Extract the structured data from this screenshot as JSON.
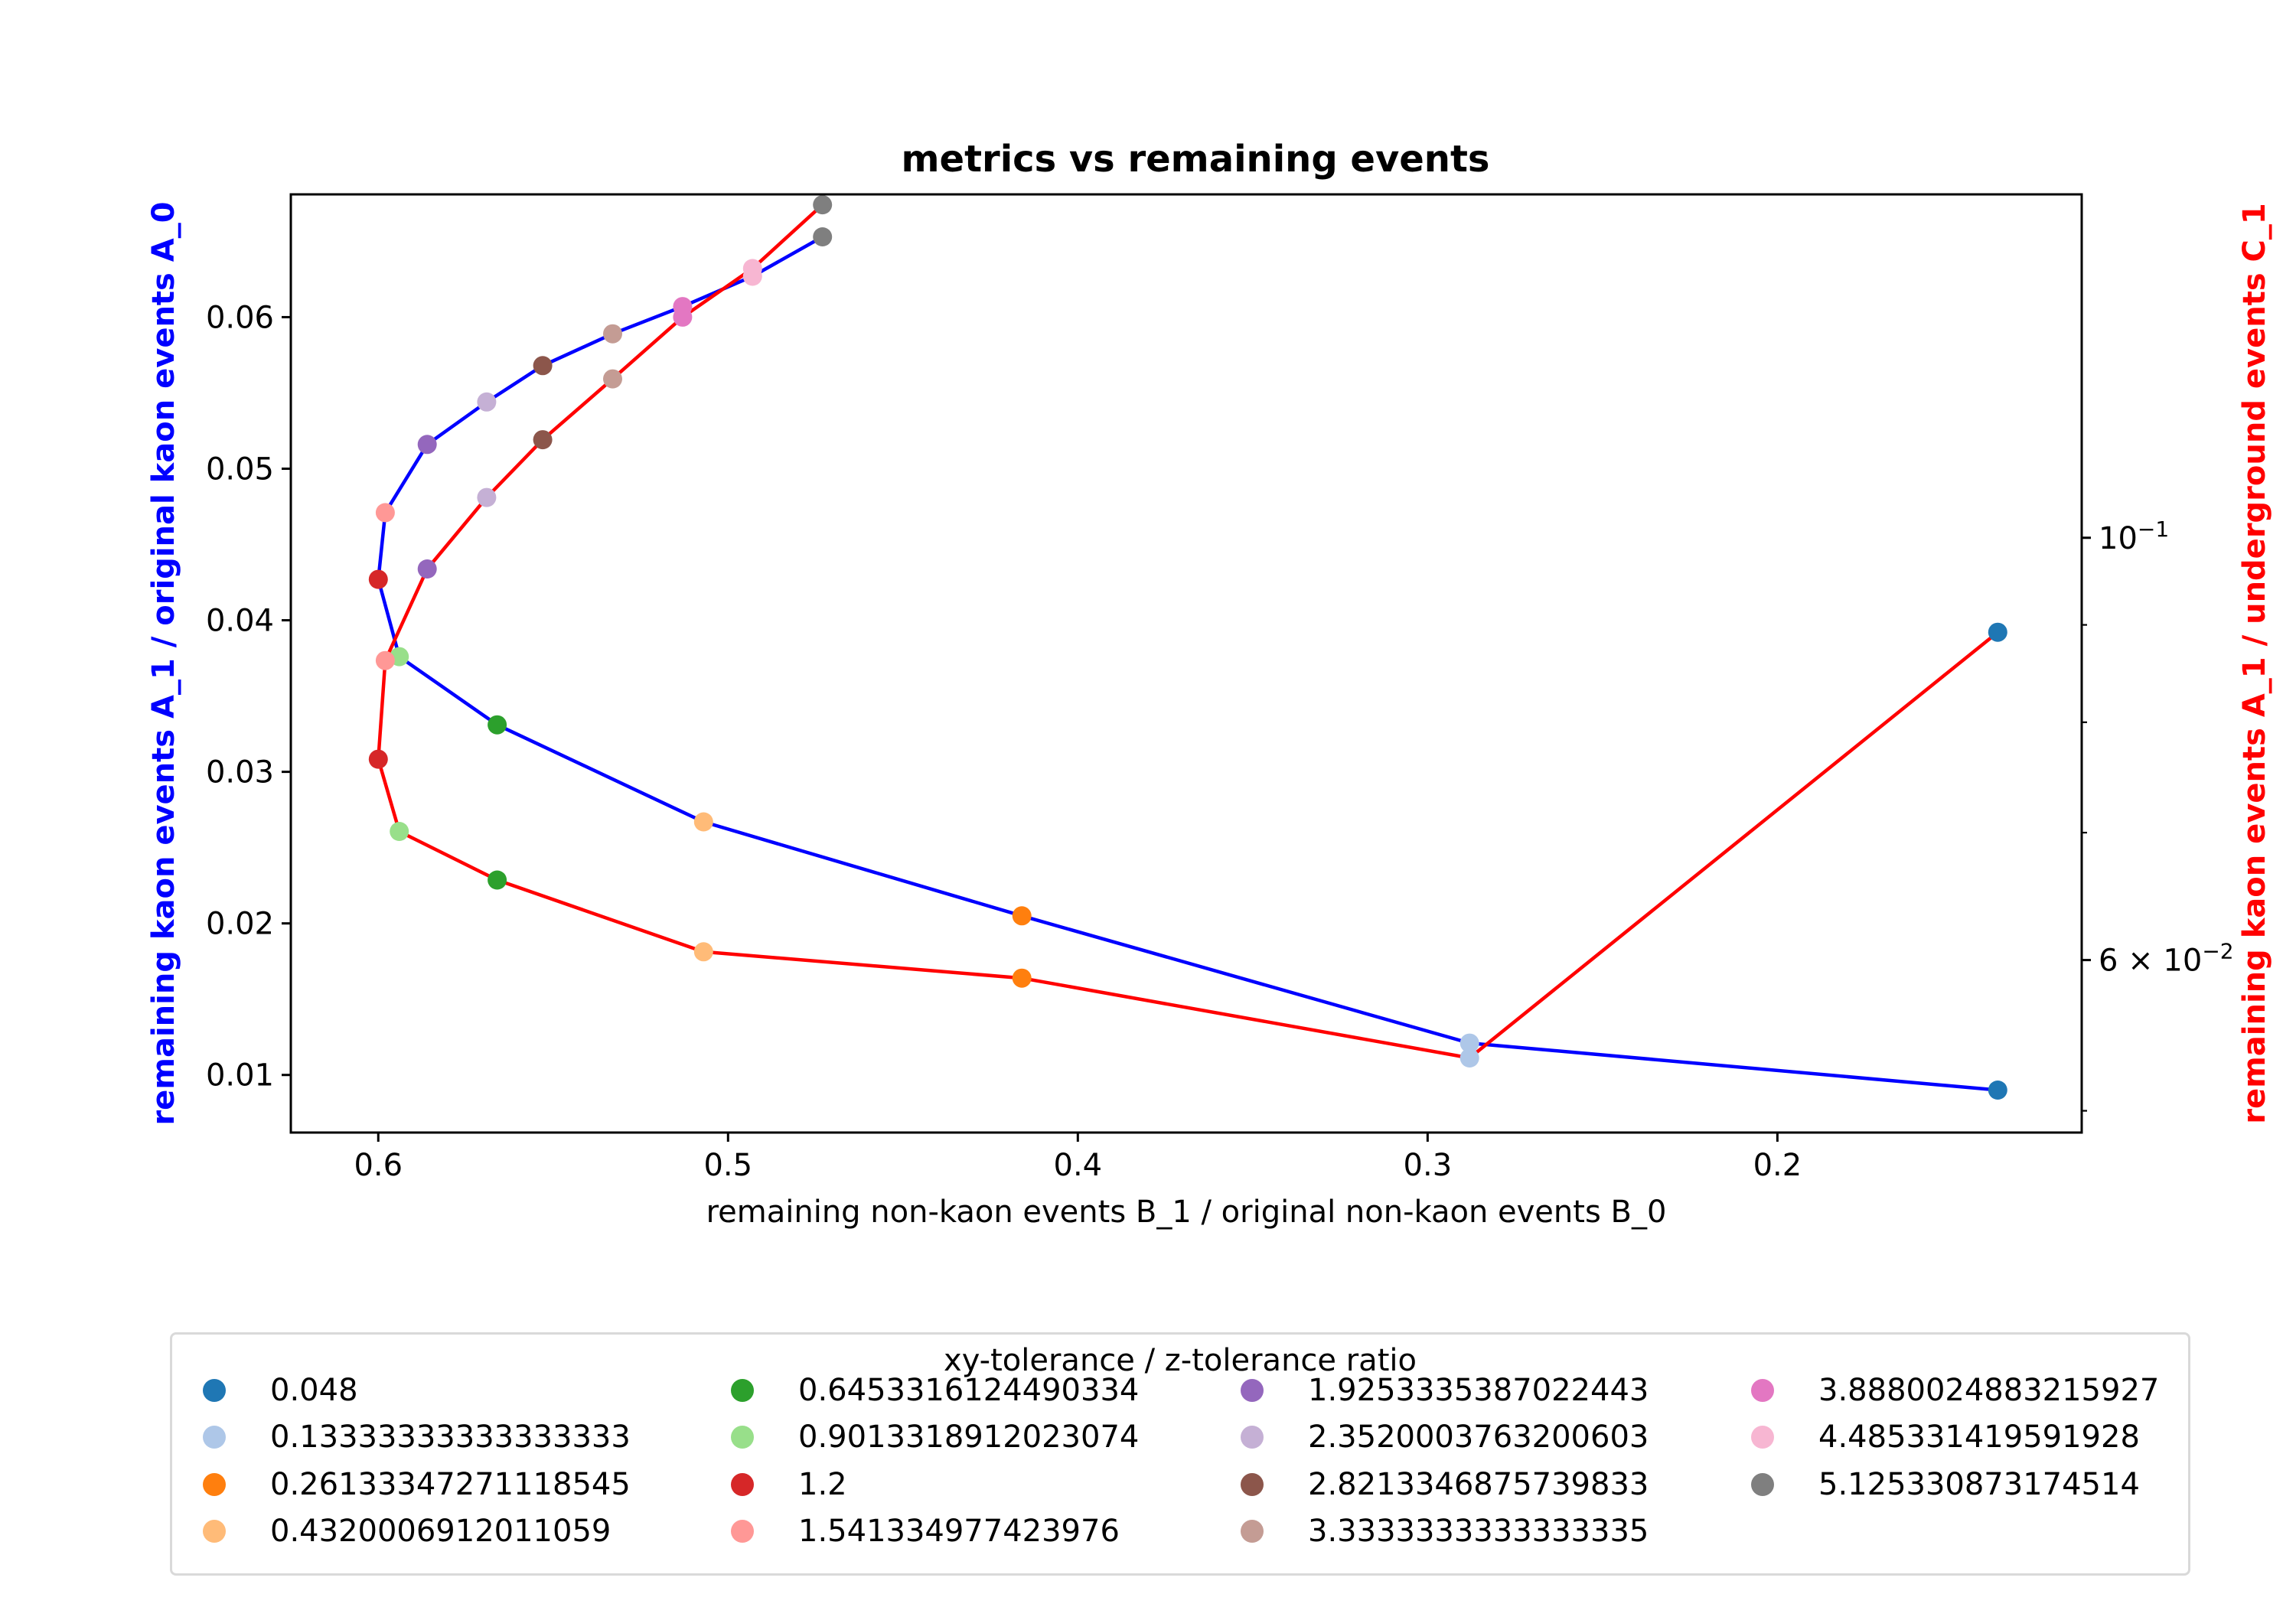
{
  "chart_data": {
    "type": "line",
    "title": "metrics vs remaining events",
    "xlabel": "remaining non-kaon events B_1 / original non-kaon events B_0",
    "ylabel_left": "remaining kaon events A_1 / original kaon events A_0",
    "ylabel_right": "remaining kaon events A_1 / underground events C_1",
    "xlim": [
      0.625,
      0.113
    ],
    "ylim_left": [
      0.0062,
      0.0681
    ],
    "ylim_right": [
      0.0487,
      0.1515
    ],
    "right_axis_scale": "log",
    "x_ticks": [
      0.6,
      0.5,
      0.4,
      0.3,
      0.2
    ],
    "x_tick_labels": [
      "0.6",
      "0.5",
      "0.4",
      "0.3",
      "0.2"
    ],
    "y_left_ticks": [
      0.01,
      0.02,
      0.03,
      0.04,
      0.05,
      0.06
    ],
    "y_left_tick_labels": [
      "0.01",
      "0.02",
      "0.03",
      "0.04",
      "0.05",
      "0.06"
    ],
    "y_right_major_ticks": [
      {
        "value": 0.1,
        "base": "10",
        "exp": "−1",
        "label": "10^−1"
      },
      {
        "value": 0.06,
        "coef": "6",
        "base": "10",
        "exp": "−2",
        "label": "6 × 10^−2"
      }
    ],
    "y_right_minor_ticks": [
      0.05,
      0.07,
      0.08,
      0.09
    ],
    "grid": false,
    "legend_title": "xy-tolerance / z-tolerance ratio",
    "legend_placement": "below plot",
    "legend_columns": 4,
    "ratios": [
      "0.048",
      "0.13333333333333333",
      "0.26133347271118545",
      "0.4320006912011059",
      "0.6453316124490334",
      "0.9013318912023074",
      "1.2",
      "1.541334977423976",
      "1.9253335387022443",
      "2.3520003763200603",
      "2.8213346875739833",
      "3.3333333333333335",
      "3.8880024883215927",
      "4.485331419591928",
      "5.125330873174514"
    ],
    "colors": [
      "#1f77b4",
      "#aec7e8",
      "#ff7f0e",
      "#ffbb78",
      "#2ca02c",
      "#98df8a",
      "#d62728",
      "#ff9896",
      "#9467bd",
      "#c5b0d5",
      "#8c564b",
      "#c49c94",
      "#e377c2",
      "#f7b6d2",
      "#7f7f7f"
    ],
    "x": [
      0.137,
      0.288,
      0.416,
      0.507,
      0.566,
      0.594,
      0.6,
      0.598,
      0.586,
      0.569,
      0.553,
      0.533,
      0.513,
      0.493,
      0.473
    ],
    "series": [
      {
        "axis": "left",
        "line_color": "#0000ff",
        "values": [
          0.009,
          0.0121,
          0.0205,
          0.0267,
          0.0331,
          0.0376,
          0.0427,
          0.0471,
          0.0516,
          0.0544,
          0.0568,
          0.0589,
          0.0607,
          0.0627,
          0.0653
        ]
      },
      {
        "axis": "right",
        "line_color": "#ff0000",
        "values": [
          0.0892,
          0.0533,
          0.0587,
          0.0606,
          0.0661,
          0.0701,
          0.0765,
          0.0862,
          0.0963,
          0.105,
          0.1126,
          0.1212,
          0.1306,
          0.1385,
          0.1496
        ]
      }
    ]
  }
}
